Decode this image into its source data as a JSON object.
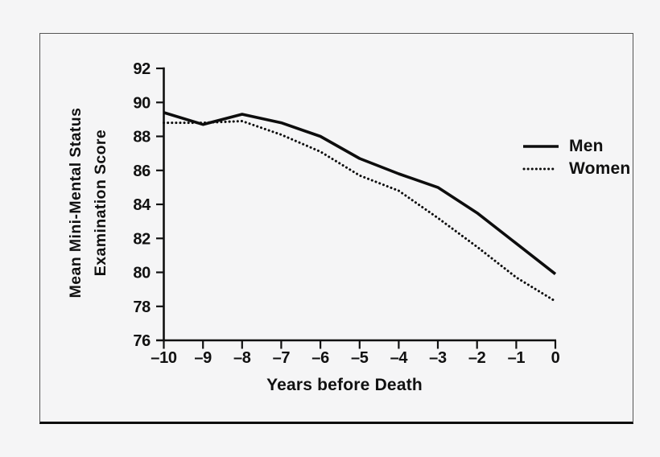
{
  "figure": {
    "background_color": "#f5f5f6",
    "frame_border_color": "#555555",
    "frame_bottom_border_color": "#0c0c0c",
    "ink_color": "#0d0d0d"
  },
  "chart_data": {
    "type": "line",
    "title": "",
    "xlabel": "Years before Death",
    "ylabel_lines": [
      "Mean Mini-Mental Status",
      "Examination Score"
    ],
    "xlim": [
      -10,
      0
    ],
    "ylim": [
      76,
      92
    ],
    "grid": "off",
    "x": [
      -10,
      -9,
      -8,
      -7,
      -6,
      -5,
      -4,
      -3,
      -2,
      -1,
      0
    ],
    "x_tick_labels": [
      "–10",
      "–9",
      "–8",
      "–7",
      "–6",
      "–5",
      "–4",
      "–3",
      "–2",
      "–1",
      "0"
    ],
    "y_ticks": [
      76,
      78,
      80,
      82,
      84,
      86,
      88,
      90,
      92
    ],
    "y_tick_labels": [
      "76",
      "78",
      "80",
      "82",
      "84",
      "86",
      "88",
      "90",
      "92"
    ],
    "series": [
      {
        "name": "Men",
        "style": "solid",
        "values": [
          89.4,
          88.7,
          89.3,
          88.8,
          88.0,
          86.7,
          85.8,
          85.0,
          83.5,
          81.7,
          79.9
        ]
      },
      {
        "name": "Women",
        "style": "dotted",
        "values": [
          88.8,
          88.8,
          88.9,
          88.1,
          87.1,
          85.7,
          84.8,
          83.2,
          81.5,
          79.7,
          78.3
        ]
      }
    ],
    "legend": {
      "position": "right-center",
      "items": [
        "Men",
        "Women"
      ]
    }
  }
}
